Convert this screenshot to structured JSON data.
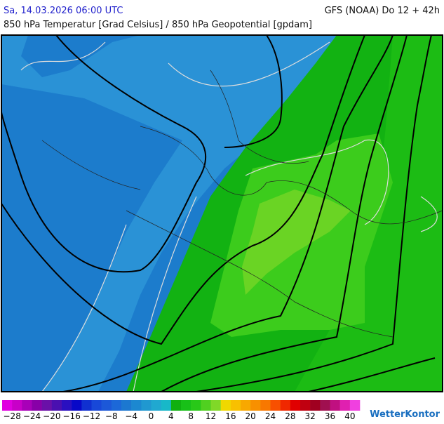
{
  "header": {
    "left": "Sa, 14.03.2026 06:00 UTC",
    "right": "GFS (NOAA) Do 12 + 42h",
    "subtitle": "850 hPa Temperatur [Grad Celsius] / 850 hPa Geopotential [gpdam]"
  },
  "legend": {
    "labels": [
      "−28",
      "−24",
      "−20",
      "−16",
      "−12",
      "−8",
      "−4",
      "0",
      "4",
      "8",
      "12",
      "16",
      "20",
      "24",
      "28",
      "32",
      "36",
      "40"
    ]
  },
  "brand": "WetterKontor"
}
